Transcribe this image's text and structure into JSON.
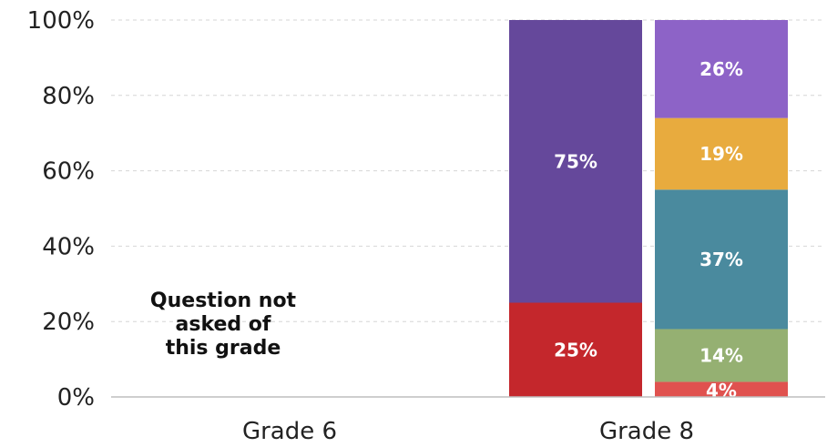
{
  "chart_data": {
    "type": "bar",
    "stacked": true,
    "categories": [
      "Grade 6",
      "Grade 8"
    ],
    "y_tick_labels": [
      "0%",
      "20%",
      "40%",
      "60%",
      "80%",
      "100%"
    ],
    "ylim": [
      0,
      100
    ],
    "grid": "horizontal dashed",
    "bars": [
      {
        "category": "Grade 8",
        "segments": [
          {
            "value": 25,
            "label": "25%",
            "color": "#c4272c"
          },
          {
            "value": 75,
            "label": "75%",
            "color": "#65489b"
          }
        ]
      },
      {
        "category": "Grade 8",
        "segments": [
          {
            "value": 4,
            "label": "4%",
            "color": "#e0524f"
          },
          {
            "value": 14,
            "label": "14%",
            "color": "#95b072"
          },
          {
            "value": 37,
            "label": "37%",
            "color": "#4a8a9e"
          },
          {
            "value": 19,
            "label": "19%",
            "color": "#e8ab3e"
          },
          {
            "value": 26,
            "label": "26%",
            "color": "#8d63c7"
          }
        ]
      }
    ],
    "annotation": {
      "category": "Grade 6",
      "lines": [
        "Question not",
        "asked of",
        "this grade"
      ]
    }
  }
}
